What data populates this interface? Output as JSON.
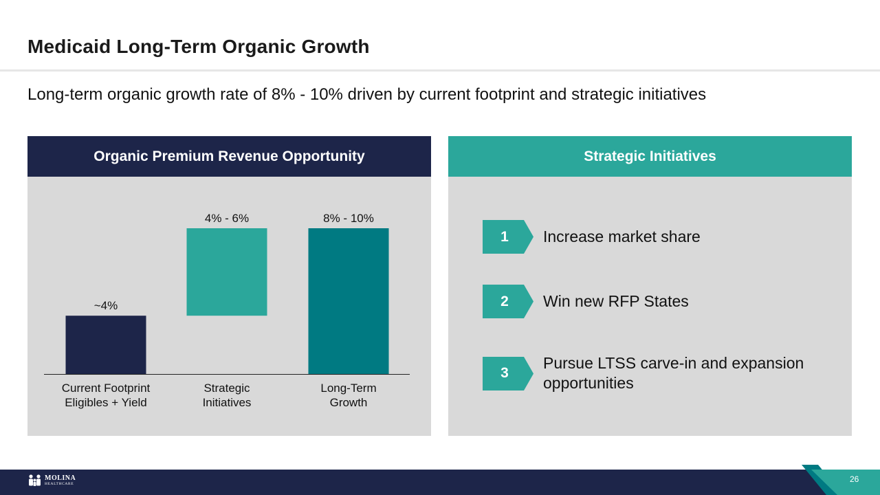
{
  "slide": {
    "title": "Medicaid Long-Term Organic Growth",
    "subtitle": "Long-term organic growth rate of 8% - 10% driven by current footprint and strategic initiatives",
    "page_number": "26"
  },
  "left_panel": {
    "header": "Organic Premium Revenue Opportunity"
  },
  "right_panel": {
    "header": "Strategic Initiatives",
    "items": [
      {
        "number": "1",
        "text": "Increase market share"
      },
      {
        "number": "2",
        "text": "Win new RFP States"
      },
      {
        "number": "3",
        "text": "Pursue LTSS carve-in and expansion opportunities"
      }
    ]
  },
  "footer": {
    "logo_main": "MOLINA",
    "logo_sub": "HEALTHCARE"
  },
  "chart_data": {
    "type": "bar",
    "subtype": "waterfall",
    "title": "Organic Premium Revenue Opportunity",
    "categories": [
      [
        "Current Footprint",
        "Eligibles + Yield"
      ],
      [
        "Strategic",
        "Initiatives"
      ],
      [
        "Long-Term",
        "Growth"
      ]
    ],
    "bars": [
      {
        "base": 0,
        "value": 4,
        "label": "~4%",
        "color": "#1d2549"
      },
      {
        "base": 4,
        "value": 6,
        "label": "4% - 6%",
        "color": "#2ba79b"
      },
      {
        "base": 0,
        "value": 10,
        "label": "8% - 10%",
        "color": "#007a82"
      }
    ],
    "ylim": [
      0,
      10
    ],
    "xlabel": "",
    "ylabel": "",
    "grid": false
  },
  "colors": {
    "navy": "#1d2549",
    "teal": "#2ba79b",
    "dark_teal": "#007a82",
    "panel_bg": "#d9d9d9"
  }
}
